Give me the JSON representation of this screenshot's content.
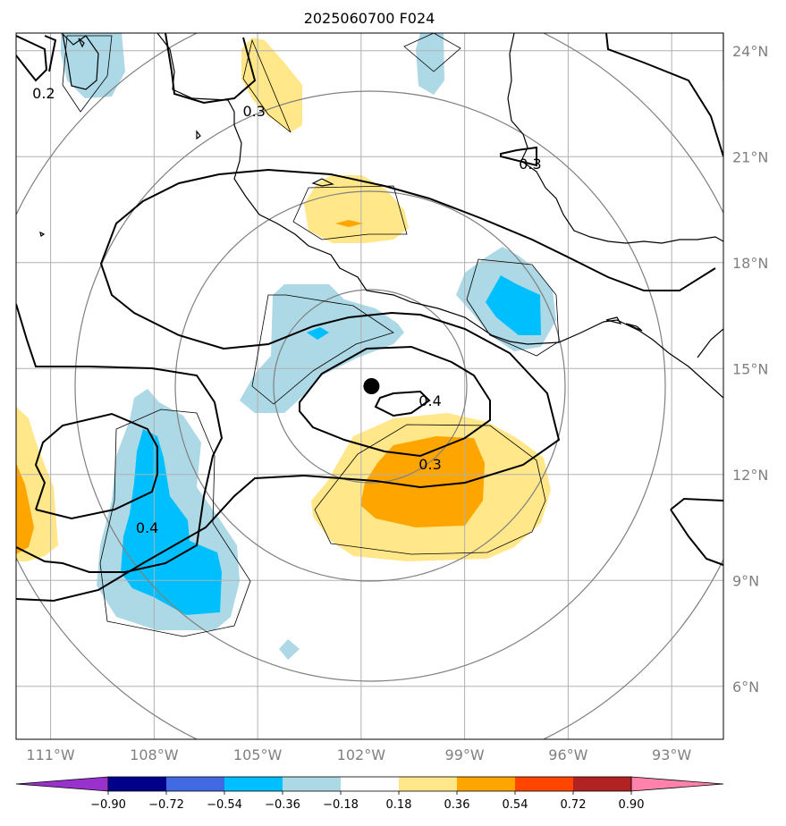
{
  "title": "2025060700 F024",
  "map": {
    "lon_range": [
      -112,
      -91.5
    ],
    "lat_range": [
      4.5,
      24.5
    ],
    "lat_ticks": [
      {
        "value": 6,
        "label": "6°N"
      },
      {
        "value": 9,
        "label": "9°N"
      },
      {
        "value": 12,
        "label": "12°N"
      },
      {
        "value": 15,
        "label": "15°N"
      },
      {
        "value": 18,
        "label": "18°N"
      },
      {
        "value": 21,
        "label": "21°N"
      },
      {
        "value": 24,
        "label": "24°N"
      }
    ],
    "lon_ticks": [
      {
        "value": -111,
        "label": "111°W"
      },
      {
        "value": -108,
        "label": "108°W"
      },
      {
        "value": -105,
        "label": "105°W"
      },
      {
        "value": -102,
        "label": "102°W"
      },
      {
        "value": -99,
        "label": "99°W"
      },
      {
        "value": -96,
        "label": "96°W"
      },
      {
        "value": -93,
        "label": "93°W"
      }
    ],
    "storm_center": {
      "lon": -101.7,
      "lat": 14.5
    },
    "contour_labels": [
      {
        "text": "0.2",
        "lon": -111.2,
        "lat": 22.8
      },
      {
        "text": "0.3",
        "lon": -105.1,
        "lat": 22.3
      },
      {
        "text": "0.3",
        "lon": -97.1,
        "lat": 20.8
      },
      {
        "text": "0.4",
        "lon": -100.0,
        "lat": 14.1
      },
      {
        "text": "0.3",
        "lon": -100.0,
        "lat": 12.3
      },
      {
        "text": "0.4",
        "lon": -108.2,
        "lat": 10.5
      }
    ]
  },
  "colorbar": {
    "colors": [
      "#9932cc",
      "#00008b",
      "#4169e1",
      "#00bfff",
      "#add8e6",
      "#ffffff",
      "#ffe78a",
      "#ffa500",
      "#ff4500",
      "#b22222",
      "#ff82ab"
    ],
    "labels": [
      "−0.90",
      "−0.72",
      "−0.54",
      "−0.36",
      "−0.18",
      "0.18",
      "0.36",
      "0.54",
      "0.72",
      "0.90"
    ]
  },
  "palette": {
    "light_blue": "#add8e6",
    "blue": "#00bfff",
    "light_yellow": "#ffe78a",
    "orange": "#ffa500",
    "grid": "#b0b0b0",
    "range_ring": "#808080"
  }
}
